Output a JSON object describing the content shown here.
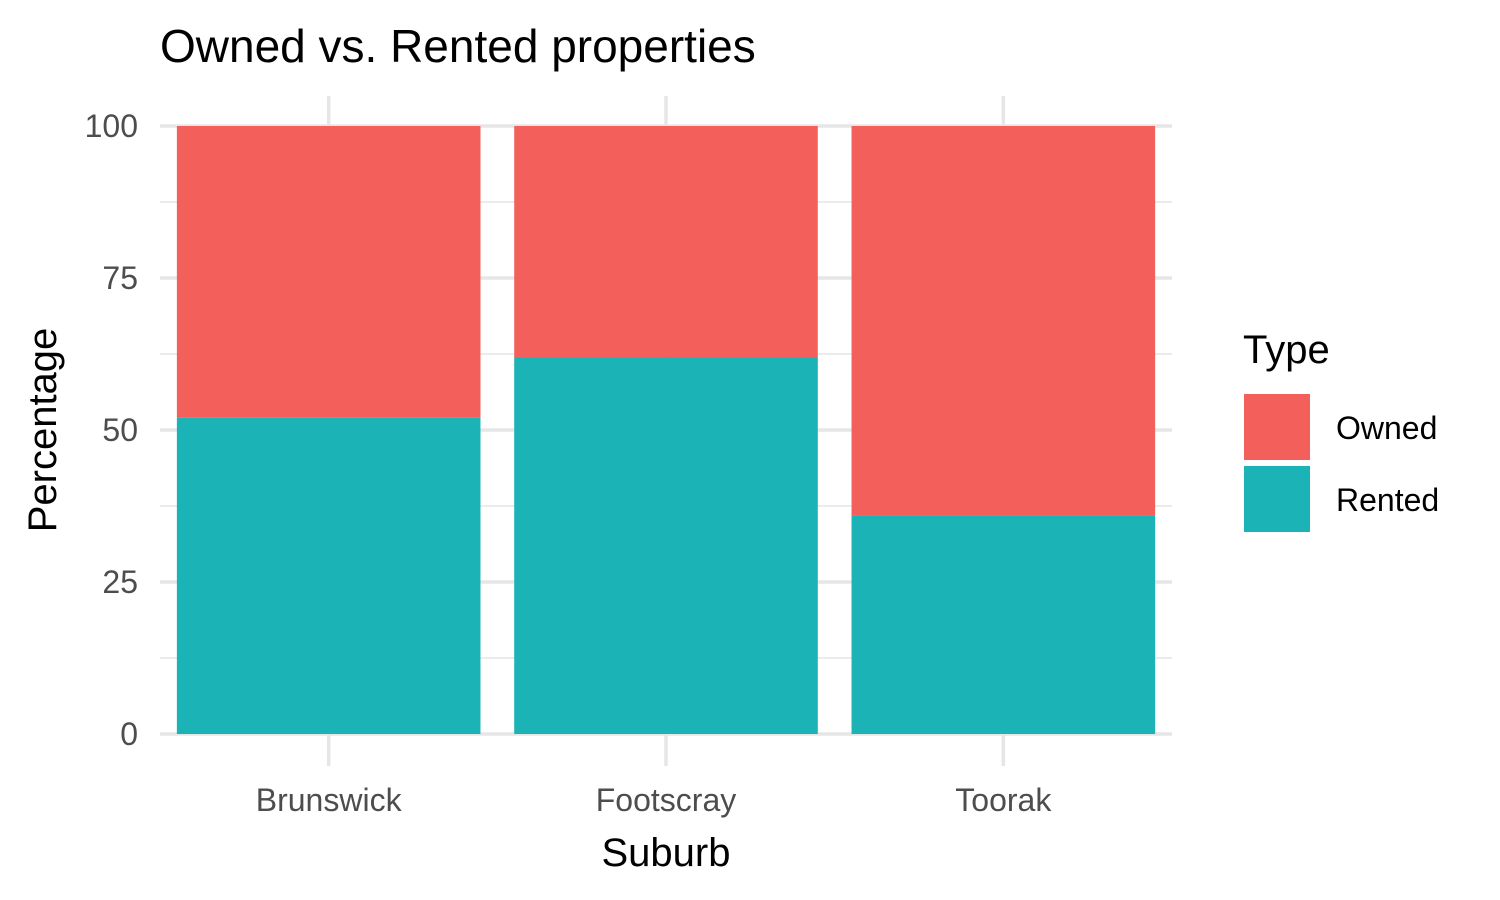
{
  "chart_data": {
    "type": "bar",
    "stacked": true,
    "title": "Owned vs. Rented properties",
    "xlabel": "Suburb",
    "ylabel": "Percentage",
    "categories": [
      "Brunswick",
      "Footscray",
      "Toorak"
    ],
    "series": [
      {
        "name": "Owned",
        "values": [
          48,
          38,
          64
        ],
        "color": "#F3605C"
      },
      {
        "name": "Rented",
        "values": [
          52,
          62,
          36
        ],
        "color": "#1BB3B6"
      }
    ],
    "ylim": [
      0,
      100
    ],
    "yticks": [
      "0",
      "25",
      "50",
      "75",
      "100"
    ],
    "grid": true,
    "legend": {
      "title": "Type",
      "position": "right"
    }
  }
}
